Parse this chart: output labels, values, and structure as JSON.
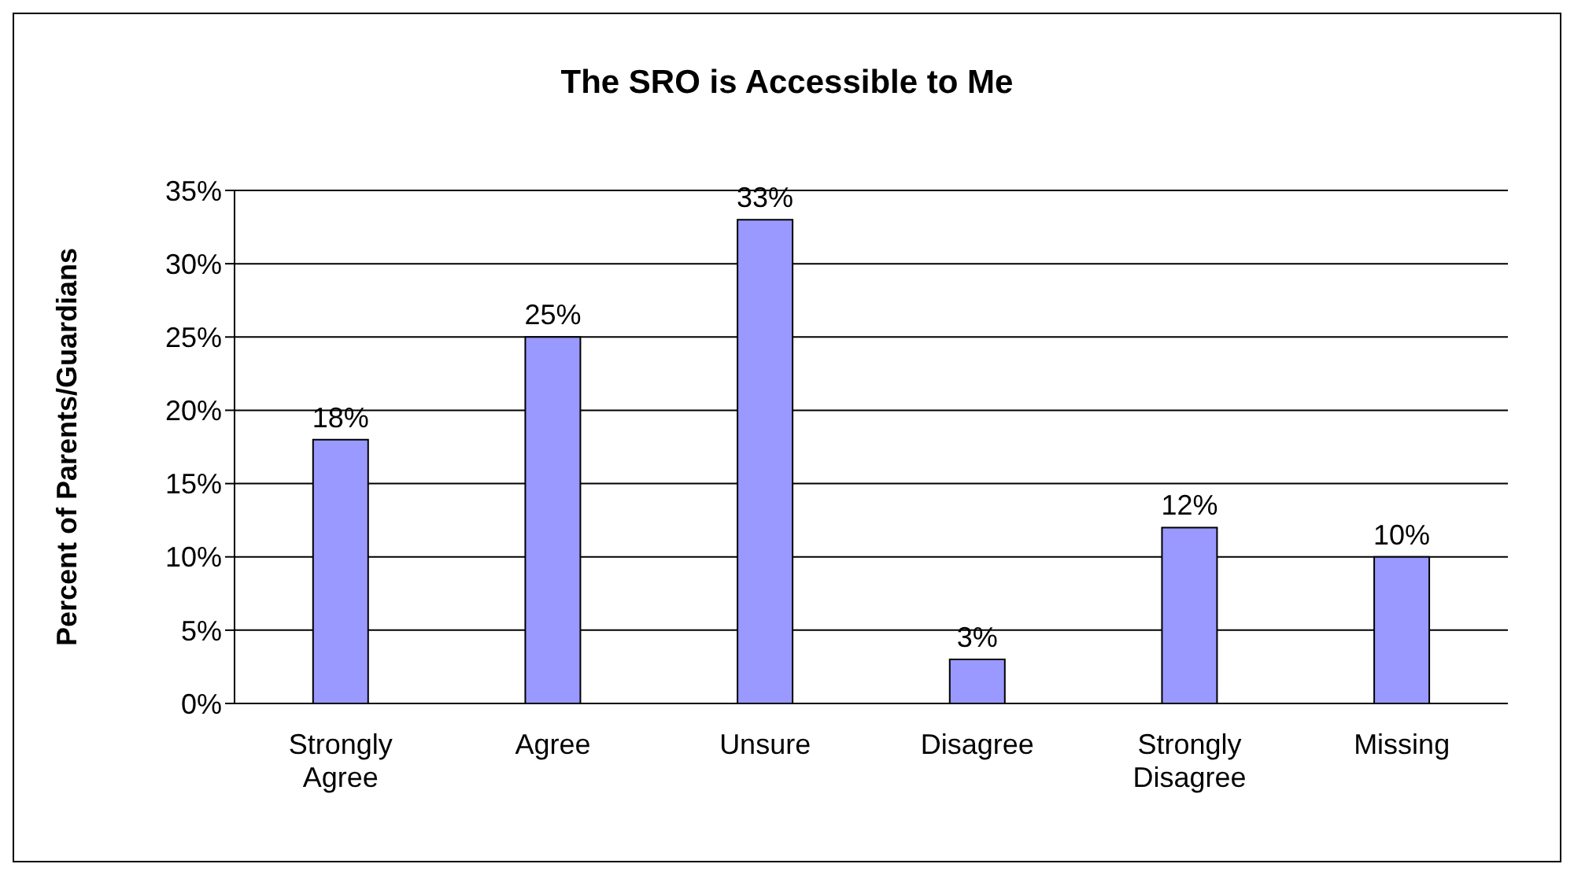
{
  "chart_data": {
    "type": "bar",
    "title": "The SRO is Accessible to Me",
    "ylabel": "Percent of Parents/Guardians",
    "categories": [
      "Strongly Agree",
      "Agree",
      "Unsure",
      "Disagree",
      "Strongly Disagree",
      "Missing"
    ],
    "values": [
      18,
      25,
      33,
      3,
      12,
      10
    ],
    "value_labels": [
      "18%",
      "25%",
      "33%",
      "3%",
      "12%",
      "10%"
    ],
    "color": "#9999ff",
    "ylim": [
      0,
      35
    ],
    "yticks": [
      {
        "value": 0,
        "label": "0%"
      },
      {
        "value": 5,
        "label": "5%"
      },
      {
        "value": 10,
        "label": "10%"
      },
      {
        "value": 15,
        "label": "15%"
      },
      {
        "value": 20,
        "label": "20%"
      },
      {
        "value": 25,
        "label": "25%"
      },
      {
        "value": 30,
        "label": "30%"
      },
      {
        "value": 35,
        "label": "35%"
      }
    ],
    "grid": "y",
    "legend": false
  }
}
